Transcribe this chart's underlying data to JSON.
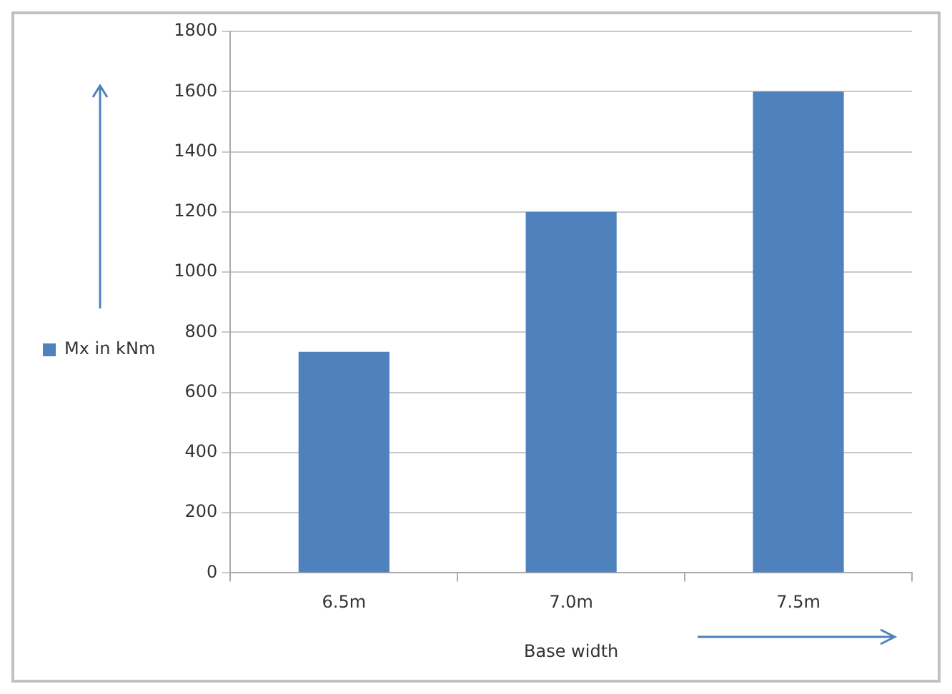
{
  "chart_data": {
    "type": "bar",
    "xlabel": "Base width",
    "categories": [
      "6.5m",
      "7.0m",
      "7.5m"
    ],
    "series": [
      {
        "name": "Mx in kNm",
        "color": "#4f81bd",
        "values": [
          735,
          1200,
          1600
        ]
      }
    ],
    "ylim": [
      0,
      1800
    ],
    "yticks": [
      0,
      200,
      400,
      600,
      800,
      1000,
      1200,
      1400,
      1600,
      1800
    ],
    "grid": "y",
    "legend": "left"
  }
}
